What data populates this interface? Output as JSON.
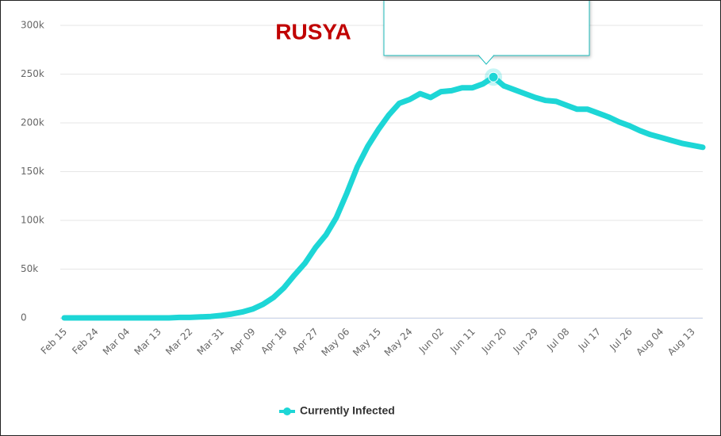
{
  "chart_data": {
    "type": "line",
    "title": "RUSYA",
    "categories": [
      "Feb 15",
      null,
      null,
      "Feb 24",
      null,
      null,
      "Mar 04",
      null,
      null,
      "Mar 13",
      null,
      null,
      "Mar 22",
      null,
      null,
      "Mar 31",
      null,
      null,
      "Apr 09",
      null,
      null,
      "Apr 18",
      null,
      null,
      "Apr 27",
      null,
      null,
      "May 06",
      null,
      null,
      "May 15",
      null,
      null,
      "May 24",
      null,
      null,
      "Jun 02",
      null,
      null,
      "Jun 11",
      null,
      null,
      "Jun 20",
      null,
      null,
      "Jun 29",
      null,
      null,
      "Jul 08",
      null,
      null,
      "Jul 17",
      null,
      null,
      "Jul 26",
      null,
      null,
      "Aug 04",
      null,
      null,
      "Aug 13",
      null
    ],
    "series": [
      {
        "name": "Currently Infected",
        "color": "#1dd6d6",
        "values": [
          0,
          0,
          0,
          0,
          0,
          0,
          0,
          0,
          0,
          0,
          0,
          500,
          500,
          1000,
          1500,
          2500,
          4000,
          6000,
          9000,
          14000,
          21000,
          31000,
          44000,
          56000,
          72000,
          85000,
          103000,
          128000,
          155000,
          176000,
          193000,
          208000,
          220000,
          224000,
          230000,
          226000,
          232000,
          233000,
          236000,
          236000,
          240000,
          247000,
          238000,
          234000,
          230000,
          226000,
          223000,
          222000,
          218000,
          214000,
          214000,
          210000,
          206000,
          201000,
          197000,
          192000,
          188000,
          185000,
          182000,
          179000,
          177000,
          175000
        ]
      }
    ],
    "ylim": [
      0,
      300000
    ],
    "yticks": [
      {
        "value": 0,
        "label": "0"
      },
      {
        "value": 50000,
        "label": "50k"
      },
      {
        "value": 100000,
        "label": "100k"
      },
      {
        "value": 150000,
        "label": "150k"
      },
      {
        "value": 200000,
        "label": "200k"
      },
      {
        "value": 250000,
        "label": "250k"
      },
      {
        "value": 300000,
        "label": "300k"
      }
    ],
    "grid": true,
    "legend": "bottom"
  }
}
